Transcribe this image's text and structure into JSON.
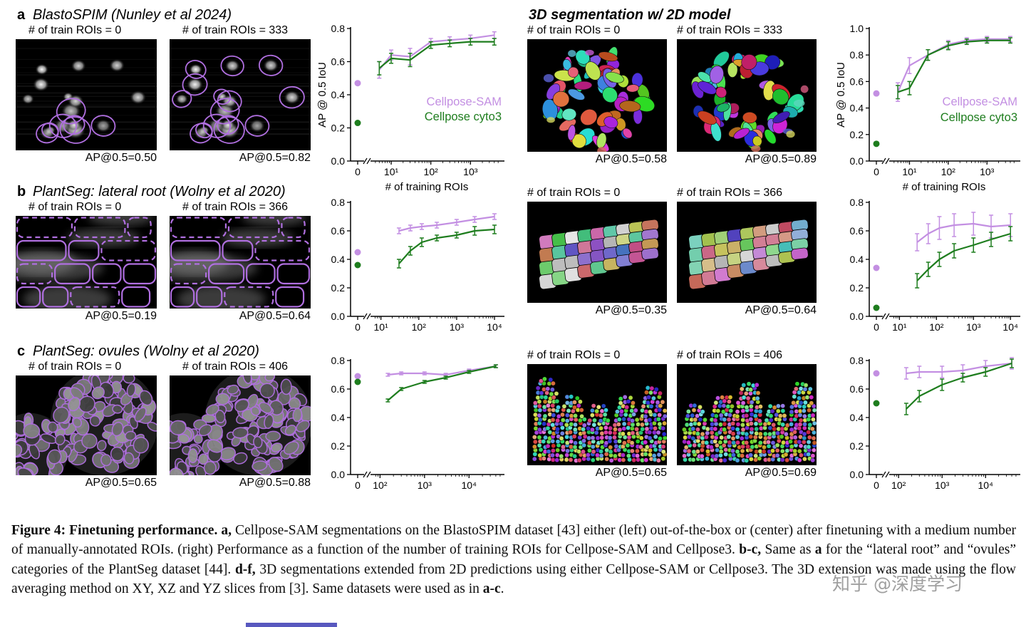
{
  "colors": {
    "cellpose_sam": "#c38fe2",
    "cellpose_cyto3": "#1e7d1e",
    "outline": "#b06fe0"
  },
  "right_header": "3D segmentation w/ 2D model",
  "panels": [
    {
      "letter": "a",
      "title": "BlastoSPIM (Nunley et al 2024)",
      "images": [
        {
          "header": "# of train ROIs = 0",
          "ap": "AP@0.5=0.50"
        },
        {
          "header": "# of train ROIs = 333",
          "ap": "AP@0.5=0.82"
        }
      ]
    },
    {
      "letter": "b",
      "title": "PlantSeg: lateral root (Wolny et al 2020)",
      "images": [
        {
          "header": "# of train ROIs = 0",
          "ap": "AP@0.5=0.19"
        },
        {
          "header": "# of train ROIs = 366",
          "ap": "AP@0.5=0.64"
        }
      ]
    },
    {
      "letter": "c",
      "title": "PlantSeg: ovules (Wolny et al 2020)",
      "images": [
        {
          "header": "# of train ROIs = 0",
          "ap": "AP@0.5=0.65"
        },
        {
          "header": "# of train ROIs = 406",
          "ap": "AP@0.5=0.88"
        }
      ]
    }
  ],
  "panels_3d": [
    {
      "images": [
        {
          "header": "# of train ROIs = 0",
          "ap": "AP@0.5=0.58"
        },
        {
          "header": "# of train ROIs = 333",
          "ap": "AP@0.5=0.89"
        }
      ]
    },
    {
      "images": [
        {
          "header": "# of train ROIs = 0",
          "ap": "AP@0.5=0.35"
        },
        {
          "header": "# of train ROIs = 366",
          "ap": "AP@0.5=0.64"
        }
      ]
    },
    {
      "images": [
        {
          "header": "# of train ROIs = 0",
          "ap": "AP@0.5=0.65"
        },
        {
          "header": "# of train ROIs = 406",
          "ap": "AP@0.5=0.69"
        }
      ]
    }
  ],
  "chart_data": [
    {
      "id": "a",
      "type": "line",
      "title": "",
      "ylabel": "AP @ 0.5 IoU",
      "xlabel": "# of training ROIs",
      "ylim": [
        0,
        0.8
      ],
      "yticks": [
        0,
        0.2,
        0.4,
        0.6,
        0.8
      ],
      "xtick_vals": [
        10,
        100,
        1000
      ],
      "xtick_labels": [
        "10¹",
        "10²",
        "10³"
      ],
      "logmin": 0.55,
      "logmax": 3.75,
      "legend": true,
      "legend_y": [
        0.335,
        0.245
      ],
      "series": [
        {
          "name": "Cellpose-SAM",
          "color_key": "cellpose_sam",
          "x": [
            5,
            10,
            30,
            100,
            300,
            1000,
            4000
          ],
          "y": [
            0.55,
            0.64,
            0.63,
            0.72,
            0.73,
            0.74,
            0.76
          ],
          "err": [
            0.05,
            0.03,
            0.05,
            0.02,
            0.02,
            0.02,
            0.02
          ],
          "zero": 0.47
        },
        {
          "name": "Cellpose cyto3",
          "color_key": "cellpose_cyto3",
          "x": [
            5,
            10,
            30,
            100,
            300,
            1000,
            4000
          ],
          "y": [
            0.56,
            0.62,
            0.61,
            0.7,
            0.71,
            0.72,
            0.72
          ],
          "err": [
            0.04,
            0.03,
            0.04,
            0.02,
            0.02,
            0.02,
            0.02
          ],
          "zero": 0.23
        }
      ]
    },
    {
      "id": "b",
      "type": "line",
      "title": "",
      "ylabel": "",
      "xlabel": "",
      "ylim": [
        0,
        0.8
      ],
      "yticks": [
        0,
        0.2,
        0.4,
        0.6,
        0.8
      ],
      "xtick_vals": [
        10,
        100,
        1000,
        10000
      ],
      "xtick_labels": [
        "10¹",
        "10²",
        "10³",
        "10⁴"
      ],
      "logmin": 0.8,
      "logmax": 4.15,
      "legend": false,
      "series": [
        {
          "name": "Cellpose-SAM",
          "color_key": "cellpose_sam",
          "x": [
            30,
            60,
            120,
            300,
            1000,
            3000,
            10000
          ],
          "y": [
            0.6,
            0.62,
            0.63,
            0.64,
            0.66,
            0.68,
            0.7
          ],
          "err": [
            0.02,
            0.02,
            0.02,
            0.02,
            0.02,
            0.02,
            0.02
          ],
          "zero": 0.45
        },
        {
          "name": "Cellpose cyto3",
          "color_key": "cellpose_cyto3",
          "x": [
            30,
            60,
            120,
            300,
            1000,
            3000,
            10000
          ],
          "y": [
            0.37,
            0.46,
            0.52,
            0.55,
            0.57,
            0.6,
            0.61
          ],
          "err": [
            0.03,
            0.03,
            0.03,
            0.02,
            0.02,
            0.03,
            0.03
          ],
          "zero": 0.36
        }
      ]
    },
    {
      "id": "c",
      "type": "line",
      "title": "",
      "ylabel": "",
      "xlabel": "",
      "ylim": [
        0,
        0.8
      ],
      "yticks": [
        0,
        0.2,
        0.4,
        0.6,
        0.8
      ],
      "xtick_vals": [
        100,
        1000,
        10000
      ],
      "xtick_labels": [
        "10²",
        "10³",
        "10⁴"
      ],
      "logmin": 1.85,
      "logmax": 4.7,
      "legend": false,
      "series": [
        {
          "name": "Cellpose-SAM",
          "color_key": "cellpose_sam",
          "x": [
            150,
            300,
            1000,
            3000,
            10000,
            40000
          ],
          "y": [
            0.7,
            0.71,
            0.71,
            0.7,
            0.73,
            0.76
          ],
          "err": [
            0.01,
            0.01,
            0.01,
            0.01,
            0.01,
            0.01
          ],
          "zero": 0.69
        },
        {
          "name": "Cellpose cyto3",
          "color_key": "cellpose_cyto3",
          "x": [
            150,
            300,
            1000,
            3000,
            10000,
            40000
          ],
          "y": [
            0.52,
            0.6,
            0.65,
            0.68,
            0.72,
            0.76
          ],
          "err": [
            0.01,
            0.01,
            0.01,
            0.01,
            0.01,
            0.01
          ],
          "zero": 0.65
        }
      ]
    },
    {
      "id": "d",
      "type": "line",
      "title": "",
      "ylabel": "AP @ 0.5 IoU",
      "xlabel": "# of training ROIs",
      "ylim": [
        0,
        1.0
      ],
      "yticks": [
        0,
        0.2,
        0.4,
        0.6,
        0.8,
        1.0
      ],
      "xtick_vals": [
        10,
        100,
        1000
      ],
      "xtick_labels": [
        "10¹",
        "10²",
        "10³"
      ],
      "logmin": 0.55,
      "logmax": 3.75,
      "legend": true,
      "legend_y": [
        0.42,
        0.3
      ],
      "series": [
        {
          "name": "Cellpose-SAM",
          "color_key": "cellpose_sam",
          "x": [
            5,
            10,
            30,
            100,
            300,
            1000,
            4000
          ],
          "y": [
            0.52,
            0.72,
            0.8,
            0.88,
            0.91,
            0.92,
            0.92
          ],
          "err": [
            0.07,
            0.06,
            0.04,
            0.03,
            0.02,
            0.02,
            0.02
          ],
          "zero": 0.51
        },
        {
          "name": "Cellpose cyto3",
          "color_key": "cellpose_cyto3",
          "x": [
            5,
            10,
            30,
            100,
            300,
            1000,
            4000
          ],
          "y": [
            0.52,
            0.55,
            0.8,
            0.87,
            0.9,
            0.91,
            0.91
          ],
          "err": [
            0.05,
            0.05,
            0.04,
            0.03,
            0.02,
            0.02,
            0.02
          ],
          "zero": 0.13
        }
      ]
    },
    {
      "id": "e",
      "type": "line",
      "title": "",
      "ylabel": "",
      "xlabel": "",
      "ylim": [
        0,
        0.8
      ],
      "yticks": [
        0,
        0.2,
        0.4,
        0.6,
        0.8
      ],
      "xtick_vals": [
        10,
        100,
        1000,
        10000
      ],
      "xtick_labels": [
        "10¹",
        "10²",
        "10³",
        "10⁴"
      ],
      "logmin": 0.8,
      "logmax": 4.15,
      "legend": false,
      "series": [
        {
          "name": "Cellpose-SAM",
          "color_key": "cellpose_sam",
          "x": [
            30,
            60,
            120,
            300,
            1000,
            3000,
            10000
          ],
          "y": [
            0.52,
            0.58,
            0.62,
            0.64,
            0.65,
            0.63,
            0.64
          ],
          "err": [
            0.06,
            0.07,
            0.08,
            0.08,
            0.08,
            0.08,
            0.08
          ],
          "zero": 0.34
        },
        {
          "name": "Cellpose cyto3",
          "color_key": "cellpose_cyto3",
          "x": [
            30,
            60,
            120,
            300,
            1000,
            3000,
            10000
          ],
          "y": [
            0.25,
            0.33,
            0.4,
            0.46,
            0.5,
            0.54,
            0.58
          ],
          "err": [
            0.05,
            0.05,
            0.05,
            0.05,
            0.05,
            0.05,
            0.05
          ],
          "zero": 0.06
        }
      ]
    },
    {
      "id": "f",
      "type": "line",
      "title": "",
      "ylabel": "",
      "xlabel": "",
      "ylim": [
        0,
        0.8
      ],
      "yticks": [
        0,
        0.2,
        0.4,
        0.6,
        0.8
      ],
      "xtick_vals": [
        100,
        1000,
        10000
      ],
      "xtick_labels": [
        "10²",
        "10³",
        "10⁴"
      ],
      "logmin": 1.85,
      "logmax": 4.7,
      "legend": false,
      "series": [
        {
          "name": "Cellpose-SAM",
          "color_key": "cellpose_sam",
          "x": [
            150,
            300,
            1000,
            3000,
            10000,
            40000
          ],
          "y": [
            0.71,
            0.72,
            0.72,
            0.73,
            0.76,
            0.78
          ],
          "err": [
            0.04,
            0.04,
            0.04,
            0.04,
            0.04,
            0.04
          ],
          "zero": 0.71
        },
        {
          "name": "Cellpose cyto3",
          "color_key": "cellpose_cyto3",
          "x": [
            150,
            300,
            1000,
            3000,
            10000,
            40000
          ],
          "y": [
            0.46,
            0.55,
            0.63,
            0.68,
            0.72,
            0.78
          ],
          "err": [
            0.04,
            0.04,
            0.04,
            0.03,
            0.03,
            0.03
          ],
          "zero": 0.5
        }
      ]
    }
  ],
  "caption": {
    "parts": [
      {
        "t": "Figure 4: Finetuning performance.",
        "b": true
      },
      {
        "t": "   "
      },
      {
        "t": "a,",
        "b": true
      },
      {
        "t": " Cellpose-SAM segmentations on the BlastoSPIM dataset "
      },
      {
        "t": "[43]",
        "link": true
      },
      {
        "t": " either (left) out-of-the-box or (center) after finetuning with a medium number of manually-annotated ROIs.  (right) Performance as a function of the number of training ROIs for Cellpose-SAM and Cellpose3. "
      },
      {
        "t": "b-c,",
        "b": true
      },
      {
        "t": " Same as "
      },
      {
        "t": "a",
        "b": true
      },
      {
        "t": " for the “lateral root” and “ovules” categories of the PlantSeg dataset "
      },
      {
        "t": "[44]",
        "link": true
      },
      {
        "t": ". "
      },
      {
        "t": "d-f,",
        "b": true
      },
      {
        "t": " 3D segmentations extended from 2D predictions using either Cellpose-SAM or Cellpose3.  The 3D extension was made using the flow averaging method on XY, XZ and YZ slices from "
      },
      {
        "t": "[3]",
        "link": true
      },
      {
        "t": ".  Same datasets were used as in "
      },
      {
        "t": "a-c",
        "b": true
      },
      {
        "t": "."
      }
    ]
  },
  "watermark": "知乎 @深度学习"
}
